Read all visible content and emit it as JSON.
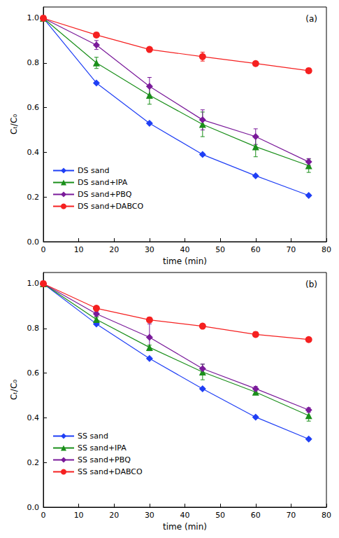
{
  "chart_data": [
    {
      "type": "line",
      "title": "(a)",
      "x_label": "time (min)",
      "y_label": "Cₜ/C₀",
      "x": [
        0,
        15,
        30,
        45,
        60,
        75
      ],
      "series": [
        {
          "name": "DS sand",
          "color": "#1f3ff5",
          "marker": "diamond",
          "values": [
            1.0,
            0.71,
            0.53,
            0.39,
            0.295,
            0.207
          ],
          "errors": [
            0,
            0.005,
            0.005,
            0.005,
            0.005,
            0.005
          ]
        },
        {
          "name": "DS sand+IPA",
          "color": "#1a8f1a",
          "marker": "triangle",
          "values": [
            1.0,
            0.8,
            0.655,
            0.525,
            0.425,
            0.34
          ],
          "errors": [
            0,
            0.025,
            0.04,
            0.055,
            0.045,
            0.03
          ]
        },
        {
          "name": "DS sand+PBQ",
          "color": "#7a1a9a",
          "marker": "diamond",
          "values": [
            1.0,
            0.88,
            0.695,
            0.545,
            0.47,
            0.357
          ],
          "errors": [
            0,
            0.02,
            0.04,
            0.045,
            0.035,
            0.015
          ]
        },
        {
          "name": "DS sand+DABCO",
          "color": "#f52020",
          "marker": "circle",
          "values": [
            1.0,
            0.925,
            0.86,
            0.828,
            0.797,
            0.765
          ],
          "errors": [
            0,
            0.01,
            0.01,
            0.02,
            0.01,
            0.01
          ]
        }
      ],
      "xlim": [
        0,
        80
      ],
      "xticks": [
        0,
        10,
        20,
        30,
        40,
        50,
        60,
        70,
        80
      ],
      "ylim": [
        0,
        1.05
      ],
      "yticks": [
        {
          "value": 0,
          "label": "0.0"
        },
        0.2,
        0.4,
        0.6,
        0.8,
        {
          "value": 1,
          "label": "1.0"
        }
      ],
      "legend": "lower left"
    },
    {
      "type": "line",
      "title": "(b)",
      "x_label": "time (min)",
      "y_label": "Cₜ/C₀",
      "x": [
        0,
        15,
        30,
        45,
        60,
        75
      ],
      "series": [
        {
          "name": "SS sand",
          "color": "#1f3ff5",
          "marker": "diamond",
          "values": [
            1.0,
            0.82,
            0.665,
            0.53,
            0.403,
            0.305
          ],
          "errors": [
            0,
            0.005,
            0.005,
            0.005,
            0.005,
            0.005
          ]
        },
        {
          "name": "SS sand+IPA",
          "color": "#1a8f1a",
          "marker": "triangle",
          "values": [
            1.0,
            0.84,
            0.715,
            0.605,
            0.515,
            0.41
          ],
          "errors": [
            0,
            0.01,
            0.01,
            0.035,
            0.01,
            0.025
          ]
        },
        {
          "name": "SS sand+PBQ",
          "color": "#7a1a9a",
          "marker": "diamond",
          "values": [
            1.0,
            0.865,
            0.76,
            0.62,
            0.53,
            0.435
          ],
          "errors": [
            0,
            0.01,
            0.06,
            0.02,
            0.01,
            0.01
          ]
        },
        {
          "name": "SS sand+DABCO",
          "color": "#f52020",
          "marker": "circle",
          "values": [
            1.0,
            0.89,
            0.838,
            0.81,
            0.773,
            0.75
          ],
          "errors": [
            0,
            0.01,
            0.01,
            0.01,
            0.01,
            0.01
          ]
        }
      ],
      "xlim": [
        0,
        80
      ],
      "xticks": [
        0,
        10,
        20,
        30,
        40,
        50,
        60,
        70,
        80
      ],
      "ylim": [
        0,
        1.05
      ],
      "yticks": [
        {
          "value": 0,
          "label": "0.0"
        },
        0.2,
        0.4,
        0.6,
        0.8,
        {
          "value": 1,
          "label": "1.0"
        }
      ],
      "legend": "lower left"
    }
  ]
}
